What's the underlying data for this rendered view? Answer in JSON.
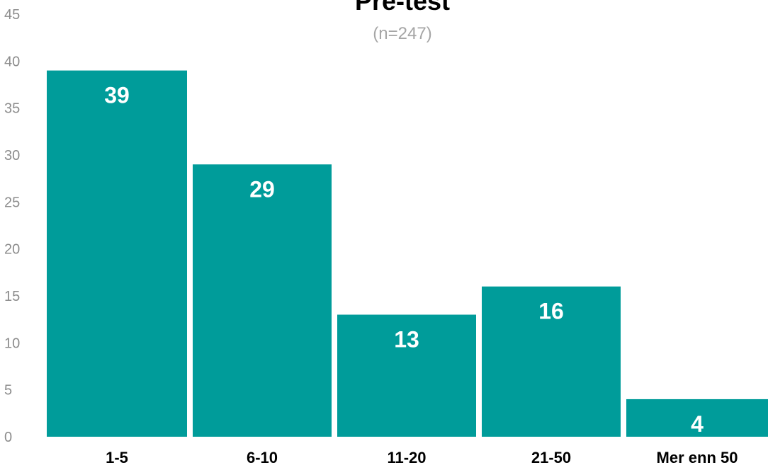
{
  "chart_data": {
    "type": "bar",
    "title": "Pre-test",
    "subtitle": "(n=247)",
    "categories": [
      "1-5",
      "6-10",
      "11-20",
      "21-50",
      "Mer enn 50"
    ],
    "values": [
      39,
      29,
      13,
      16,
      4
    ],
    "data_labels": [
      "39",
      "29",
      "13",
      "16",
      "4"
    ],
    "ylim": [
      0,
      45
    ],
    "yticks": [
      "0",
      "5",
      "10",
      "15",
      "20",
      "25",
      "30",
      "35",
      "40",
      "45"
    ],
    "xlabel": "",
    "ylabel": "",
    "grid": false,
    "legend": "none",
    "bar_color": "#009c9a",
    "data_label_color": "#ffffff"
  }
}
